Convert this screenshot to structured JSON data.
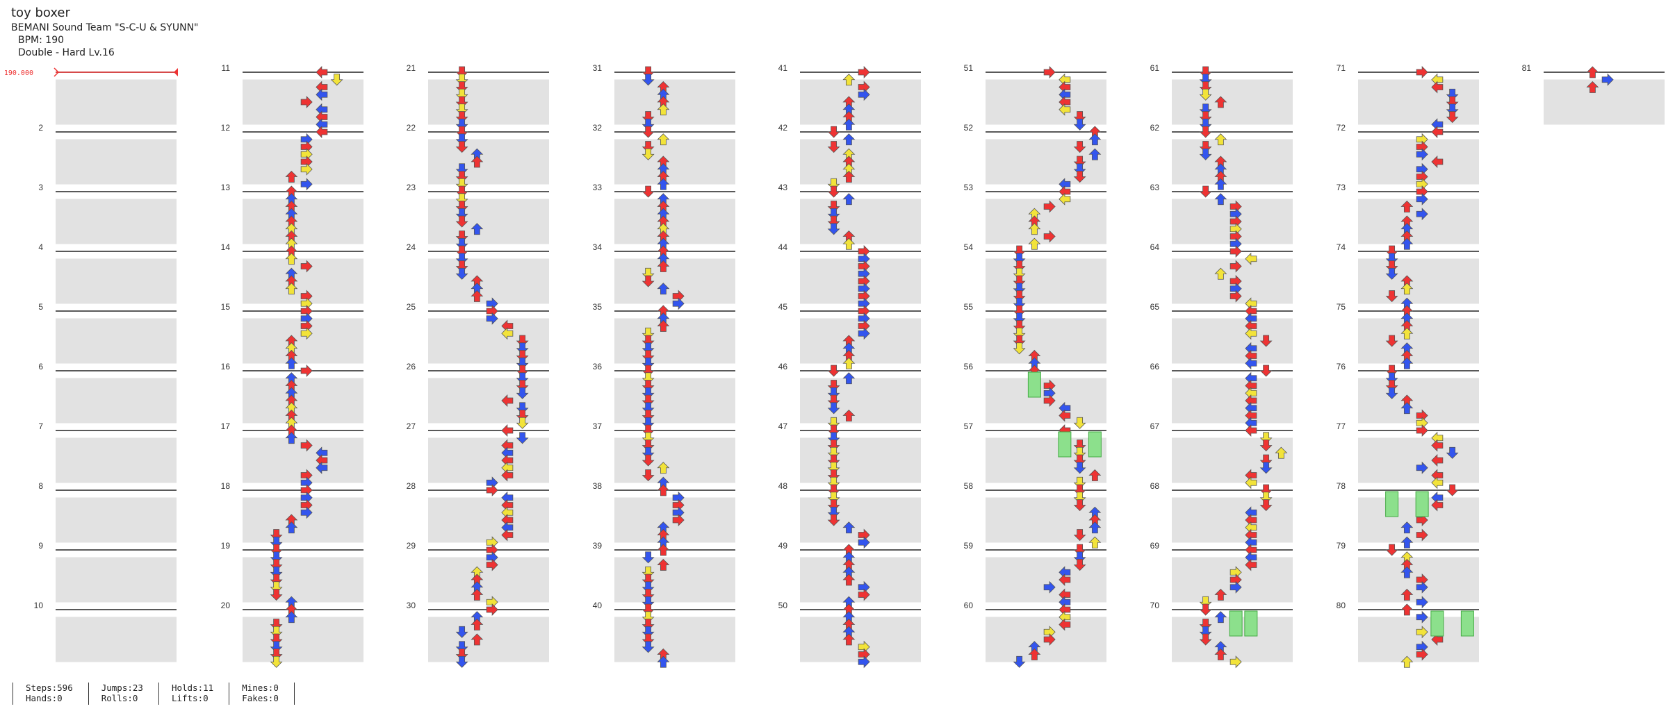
{
  "song": {
    "title": "toy boxer",
    "artist": "BEMANI Sound Team \"S-C-U & SYUNN\"",
    "bpm_label": "BPM: 190",
    "difficulty_label": "Double - Hard  Lv.16"
  },
  "bpm_marker": "190.000",
  "colors": {
    "red": "#ee3333",
    "blue": "#3355ee",
    "yellow": "#f2e33a",
    "hold": "#8ce08c",
    "stripe": "#e2e2e2",
    "line": "#222222"
  },
  "measures": {
    "first": 1,
    "last": 81,
    "per_column": 10,
    "labeled": [
      "2",
      "3",
      "4",
      "5",
      "6",
      "7",
      "8",
      "9",
      "10",
      "11",
      "12",
      "13",
      "14",
      "15",
      "16",
      "17",
      "18",
      "19",
      "20",
      "21",
      "22",
      "23",
      "24",
      "25",
      "26",
      "27",
      "28",
      "29",
      "30",
      "31",
      "32",
      "33",
      "34",
      "35",
      "36",
      "37",
      "38",
      "39",
      "40",
      "41",
      "42",
      "43",
      "44",
      "45",
      "46",
      "47",
      "48",
      "49",
      "50",
      "51",
      "52",
      "53",
      "54",
      "55",
      "56",
      "57",
      "58",
      "59",
      "60",
      "61",
      "62",
      "63",
      "64",
      "65",
      "66",
      "67",
      "68",
      "69",
      "70",
      "71",
      "72",
      "73",
      "74",
      "75",
      "76",
      "77",
      "78",
      "79",
      "80",
      "81"
    ]
  },
  "stats": [
    {
      "line1": "Steps:596",
      "line2": "Hands:0"
    },
    {
      "line1": "Jumps:23",
      "line2": "Rolls:0"
    },
    {
      "line1": "Holds:11",
      "line2": "Lifts:0"
    },
    {
      "line1": "Mines:0",
      "line2": "Fakes:0"
    }
  ]
}
